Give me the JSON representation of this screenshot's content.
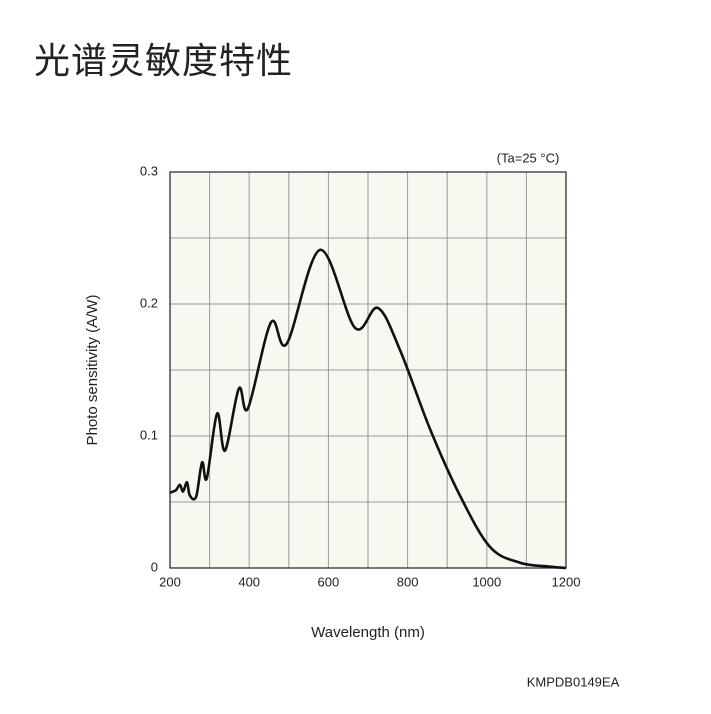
{
  "title": "光谱灵敏度特性",
  "chart_data": {
    "type": "line",
    "annotation": "(Ta=25 °C)",
    "x_label": "Wavelength (nm)",
    "y_label": "Photo sensitivity (A/W)",
    "code": "KMPDB0149EA",
    "xlim": [
      200,
      1200
    ],
    "ylim": [
      0,
      0.3
    ],
    "xticks": [
      200,
      400,
      600,
      800,
      1000,
      1200
    ],
    "yticks": [
      0,
      0.1,
      0.2,
      0.3
    ],
    "xminor": [
      300,
      500,
      700,
      900,
      1100
    ],
    "yminor": [
      0.05,
      0.15,
      0.25
    ],
    "grid": true,
    "series": [
      {
        "color": "#111111",
        "x": [
          200,
          215,
          225,
          233,
          243,
          250,
          266,
          281,
          293,
          319,
          339,
          374,
          397,
          455,
          495,
          579,
          667,
          725,
          781,
          857,
          932,
          1008,
          1084,
          1160,
          1200
        ],
        "values": [
          0.057,
          0.059,
          0.063,
          0.058,
          0.065,
          0.055,
          0.054,
          0.08,
          0.068,
          0.117,
          0.089,
          0.136,
          0.121,
          0.186,
          0.17,
          0.241,
          0.182,
          0.197,
          0.165,
          0.105,
          0.055,
          0.016,
          0.004,
          0.001,
          0
        ]
      }
    ]
  }
}
